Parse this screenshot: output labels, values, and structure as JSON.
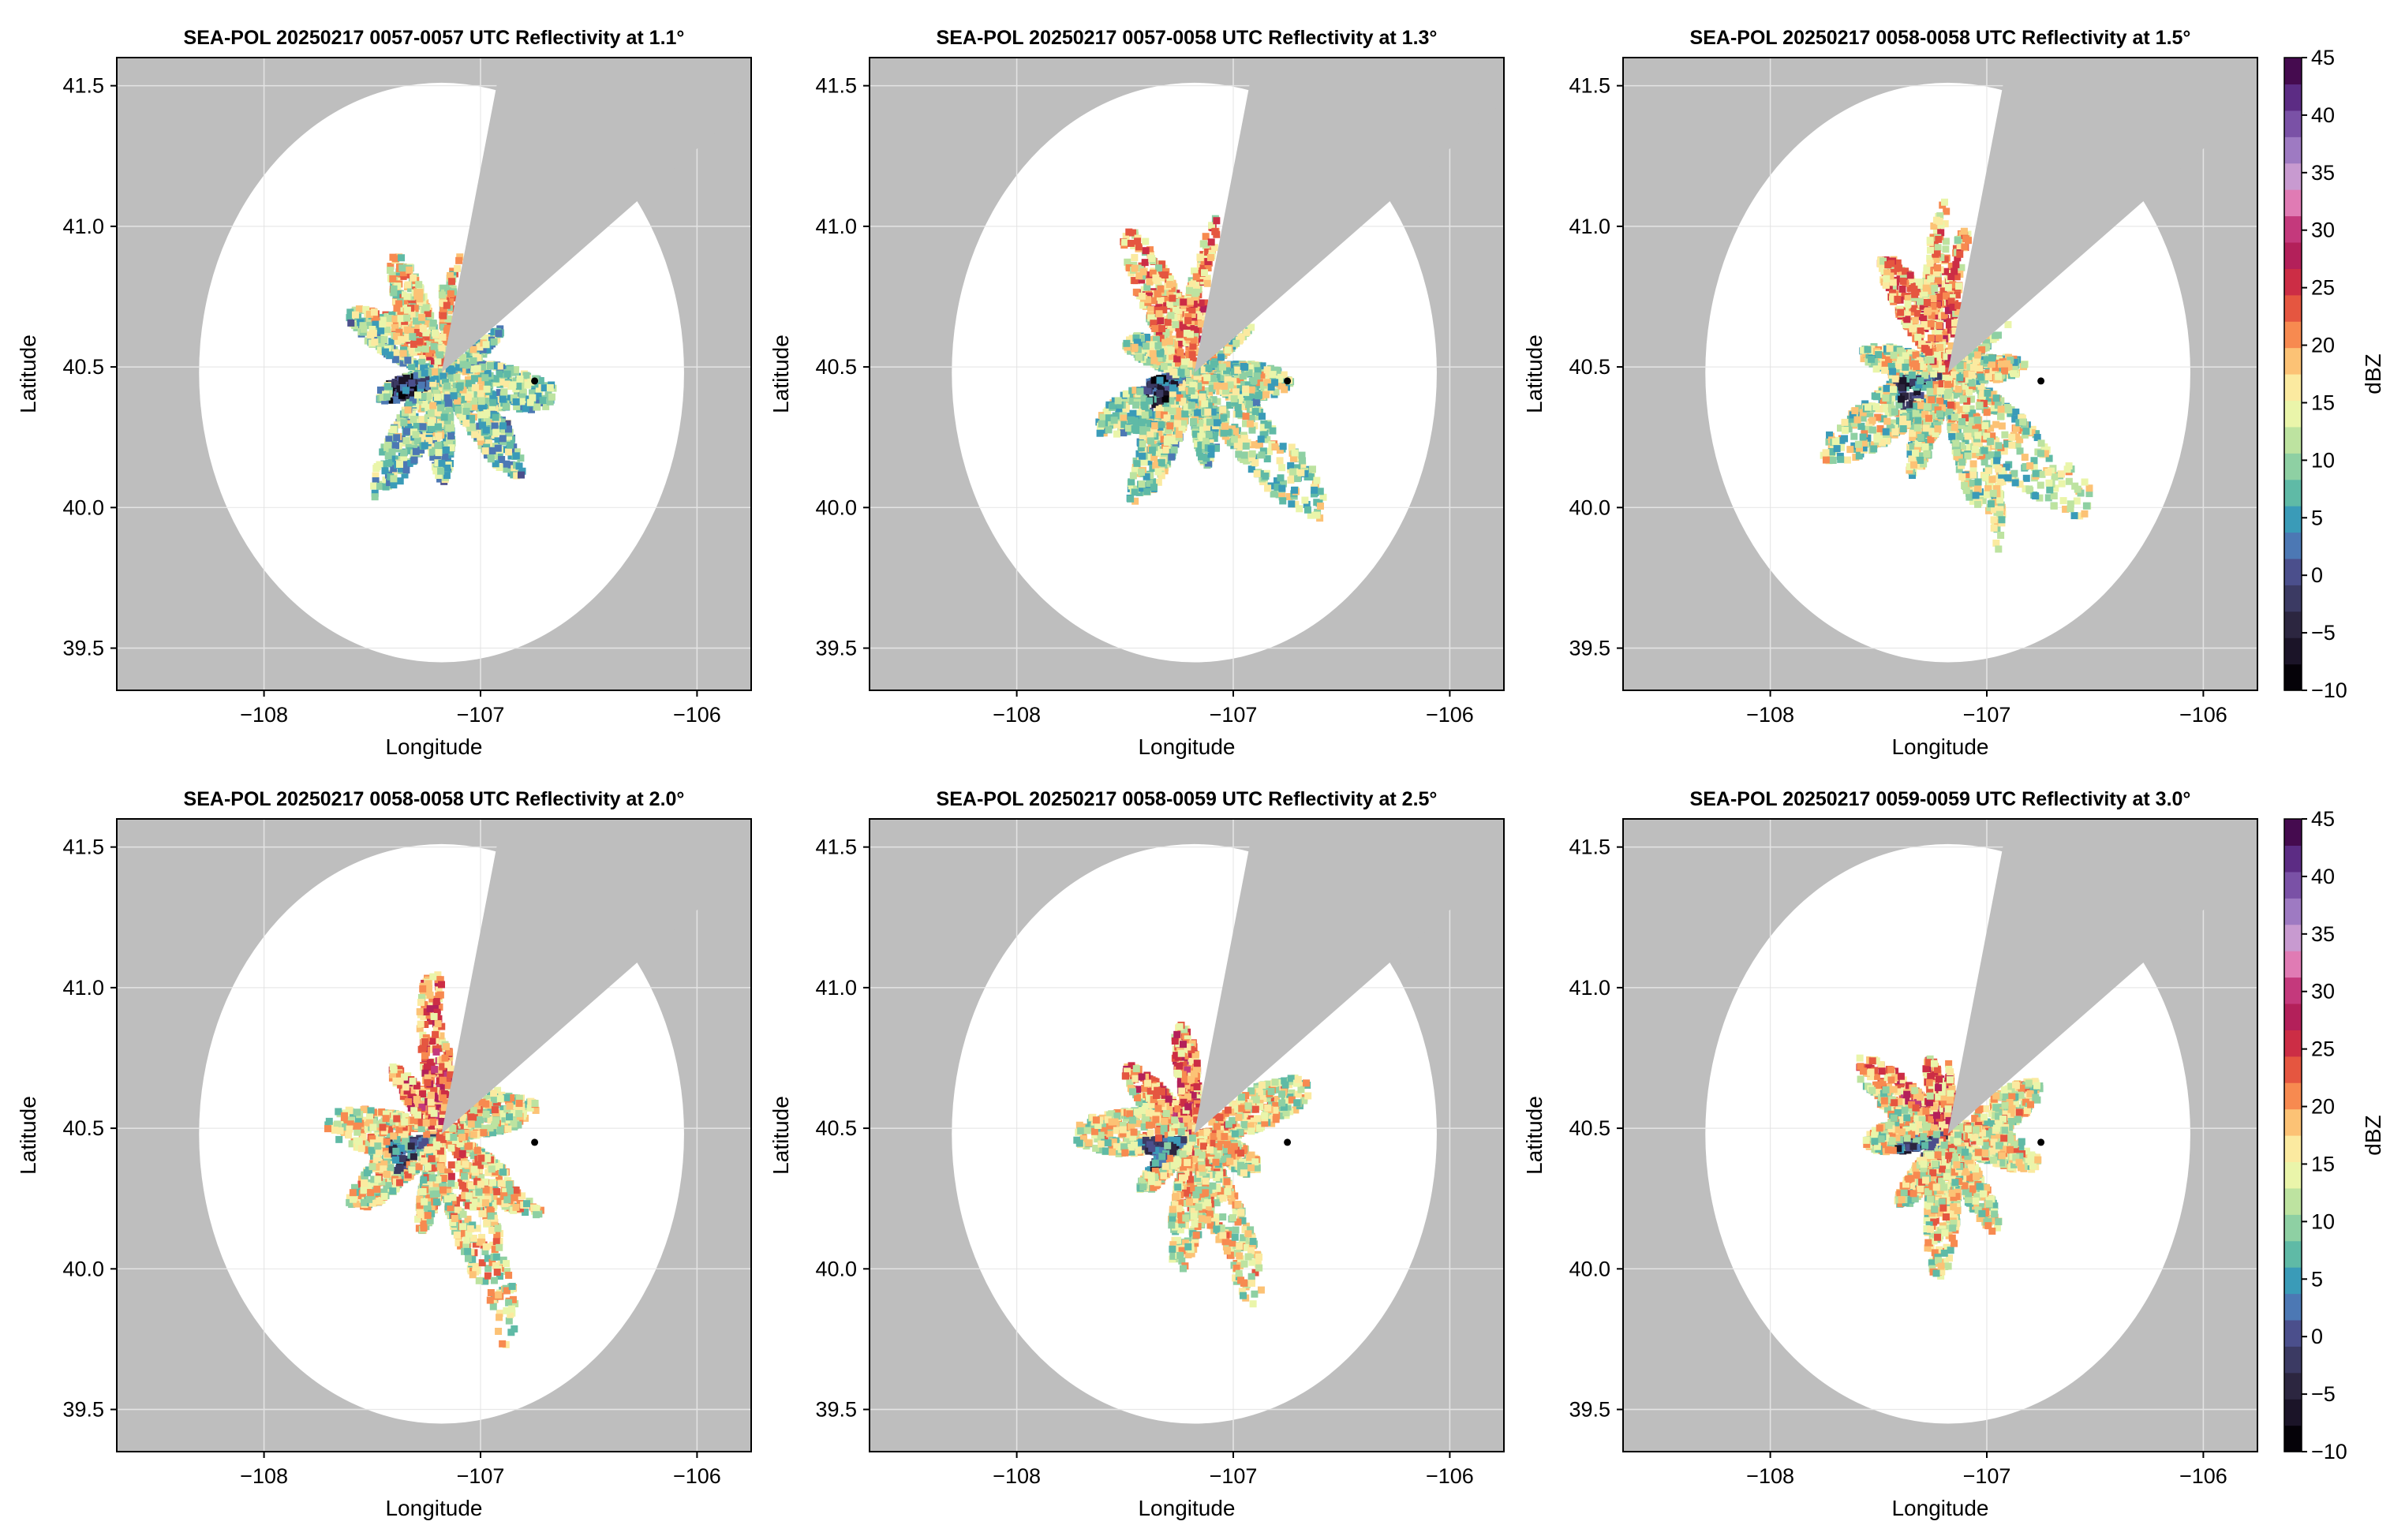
{
  "figure": {
    "colors": {
      "background": "#ffffff",
      "outside_range": "#bebebe",
      "blocked_sector": "#bebebe",
      "grid": "#e3e3e3",
      "radar_coverage": "#ffffff",
      "station_marker": "#000000"
    },
    "colorbar": {
      "label": "dBZ",
      "range": [
        -10,
        45
      ],
      "step": 2.5,
      "ticks": [
        -10,
        -5,
        0,
        5,
        10,
        15,
        20,
        25,
        30,
        35,
        40,
        45
      ],
      "tick_labels": [
        "−10",
        "−5",
        "0",
        "5",
        "10",
        "15",
        "20",
        "25",
        "30",
        "35",
        "40",
        "45"
      ],
      "colormap": [
        "#050208",
        "#1b1428",
        "#2c2640",
        "#3b3a63",
        "#4b4f8c",
        "#4c78b4",
        "#3a9bb8",
        "#5fbaa6",
        "#8ed0a3",
        "#bde3a0",
        "#eaf5aa",
        "#fbeaa0",
        "#fcc275",
        "#f78a50",
        "#e55640",
        "#cc2d45",
        "#b3205a",
        "#c4397c",
        "#e07bb4",
        "#c89ad0",
        "#9e7ac2",
        "#7a51a6",
        "#5c2c84",
        "#450b4f"
      ]
    }
  },
  "chart_data": [
    {
      "type": "heatmap",
      "title": "SEA-POL 20250217 0057-0057 UTC Reflectivity at 1.1°",
      "xlabel": "Longitude",
      "ylabel": "Latitude",
      "xlim": [
        -108.68,
        -105.75
      ],
      "ylim": [
        39.35,
        41.6
      ],
      "xticks": [
        -108,
        -107,
        -106
      ],
      "xtick_labels": [
        "−108",
        "−107",
        "−106"
      ],
      "yticks": [
        39.5,
        40.0,
        40.5,
        41.0,
        41.5
      ],
      "ytick_labels": [
        "39.5",
        "40.0",
        "40.5",
        "41.0",
        "41.5"
      ],
      "grid": true,
      "radar_center": [
        -107.18,
        40.48
      ],
      "range_radius_deg": 1.12,
      "blocked_sector_bearing_deg": [
        14,
        56
      ],
      "station_marker": [
        -106.75,
        40.45
      ],
      "echo_extent_deg": 0.55,
      "echo_mean_dbz": 9
    },
    {
      "type": "heatmap",
      "title": "SEA-POL 20250217 0057-0058 UTC Reflectivity at 1.3°",
      "xlabel": "Longitude",
      "ylabel": "Latitude",
      "xlim": [
        -108.68,
        -105.75
      ],
      "ylim": [
        39.35,
        41.6
      ],
      "xticks": [
        -108,
        -107,
        -106
      ],
      "xtick_labels": [
        "−108",
        "−107",
        "−106"
      ],
      "yticks": [
        39.5,
        40.0,
        40.5,
        41.0,
        41.5
      ],
      "ytick_labels": [
        "39.5",
        "40.0",
        "40.5",
        "41.0",
        "41.5"
      ],
      "grid": true,
      "radar_center": [
        -107.18,
        40.48
      ],
      "range_radius_deg": 1.12,
      "blocked_sector_bearing_deg": [
        14,
        56
      ],
      "station_marker": [
        -106.75,
        40.45
      ],
      "echo_extent_deg": 0.6,
      "echo_mean_dbz": 11
    },
    {
      "type": "heatmap",
      "title": "SEA-POL 20250217 0058-0058 UTC Reflectivity at 1.5°",
      "xlabel": "Longitude",
      "ylabel": "Latitude",
      "xlim": [
        -108.68,
        -105.75
      ],
      "ylim": [
        39.35,
        41.6
      ],
      "xticks": [
        -108,
        -107,
        -106
      ],
      "xtick_labels": [
        "−108",
        "−107",
        "−106"
      ],
      "yticks": [
        39.5,
        40.0,
        40.5,
        41.0,
        41.5
      ],
      "ytick_labels": [
        "39.5",
        "40.0",
        "40.5",
        "41.0",
        "41.5"
      ],
      "grid": true,
      "radar_center": [
        -107.18,
        40.48
      ],
      "range_radius_deg": 1.12,
      "blocked_sector_bearing_deg": [
        14,
        56
      ],
      "station_marker": [
        -106.75,
        40.45
      ],
      "echo_extent_deg": 0.65,
      "echo_mean_dbz": 12
    },
    {
      "type": "heatmap",
      "title": "SEA-POL 20250217 0058-0058 UTC Reflectivity at 2.0°",
      "xlabel": "Longitude",
      "ylabel": "Latitude",
      "xlim": [
        -108.68,
        -105.75
      ],
      "ylim": [
        39.35,
        41.6
      ],
      "xticks": [
        -108,
        -107,
        -106
      ],
      "xtick_labels": [
        "−108",
        "−107",
        "−106"
      ],
      "yticks": [
        39.5,
        40.0,
        40.5,
        41.0,
        41.5
      ],
      "ytick_labels": [
        "39.5",
        "40.0",
        "40.5",
        "41.0",
        "41.5"
      ],
      "grid": true,
      "radar_center": [
        -107.18,
        40.48
      ],
      "range_radius_deg": 1.12,
      "blocked_sector_bearing_deg": [
        14,
        56
      ],
      "station_marker": [
        -106.75,
        40.45
      ],
      "echo_extent_deg": 0.6,
      "echo_mean_dbz": 14
    },
    {
      "type": "heatmap",
      "title": "SEA-POL 20250217 0058-0059 UTC Reflectivity at 2.5°",
      "xlabel": "Longitude",
      "ylabel": "Latitude",
      "xlim": [
        -108.68,
        -105.75
      ],
      "ylim": [
        39.35,
        41.6
      ],
      "xticks": [
        -108,
        -107,
        -106
      ],
      "xtick_labels": [
        "−108",
        "−107",
        "−106"
      ],
      "yticks": [
        39.5,
        40.0,
        40.5,
        41.0,
        41.5
      ],
      "ytick_labels": [
        "39.5",
        "40.0",
        "40.5",
        "41.0",
        "41.5"
      ],
      "grid": true,
      "radar_center": [
        -107.18,
        40.48
      ],
      "range_radius_deg": 1.12,
      "blocked_sector_bearing_deg": [
        14,
        56
      ],
      "station_marker": [
        -106.75,
        40.45
      ],
      "echo_extent_deg": 0.57,
      "echo_mean_dbz": 14
    },
    {
      "type": "heatmap",
      "title": "SEA-POL 20250217 0059-0059 UTC Reflectivity at 3.0°",
      "xlabel": "Longitude",
      "ylabel": "Latitude",
      "xlim": [
        -108.68,
        -105.75
      ],
      "ylim": [
        39.35,
        41.6
      ],
      "xticks": [
        -108,
        -107,
        -106
      ],
      "xtick_labels": [
        "−108",
        "−107",
        "−106"
      ],
      "yticks": [
        39.5,
        40.0,
        40.5,
        41.0,
        41.5
      ],
      "ytick_labels": [
        "39.5",
        "40.0",
        "40.5",
        "41.0",
        "41.5"
      ],
      "grid": true,
      "radar_center": [
        -107.18,
        40.48
      ],
      "range_radius_deg": 1.12,
      "blocked_sector_bearing_deg": [
        14,
        56
      ],
      "station_marker": [
        -106.75,
        40.45
      ],
      "echo_extent_deg": 0.52,
      "echo_mean_dbz": 14
    }
  ]
}
